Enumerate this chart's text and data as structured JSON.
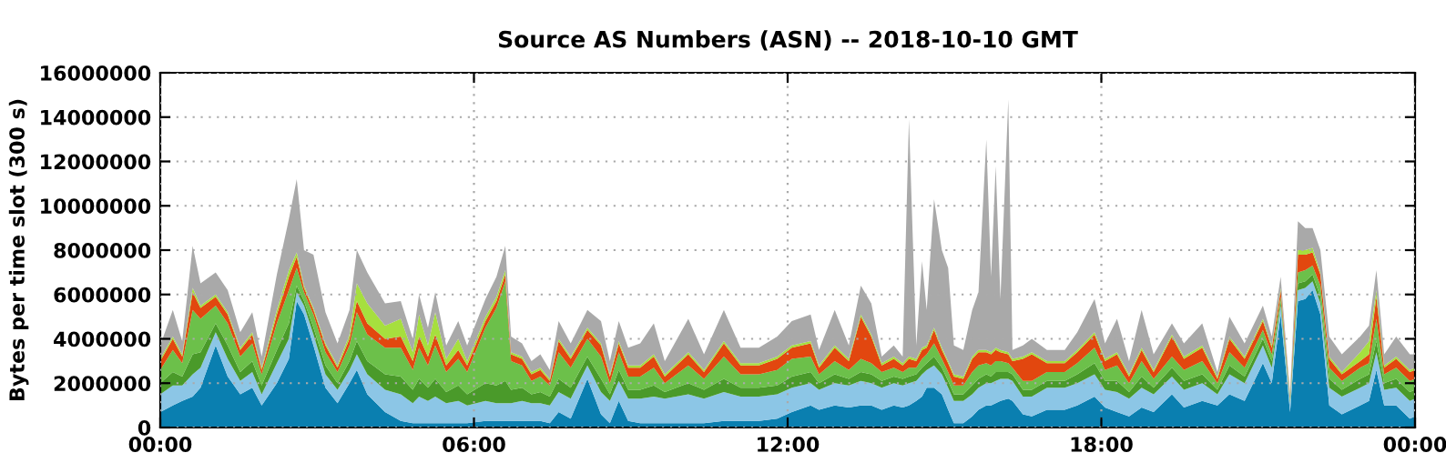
{
  "chart_data": {
    "type": "area",
    "stacked": true,
    "title": "Source AS Numbers (ASN) -- 2018-10-10 GMT",
    "ylabel": "Bytes per time slot (300 s)",
    "xlim": [
      0,
      24
    ],
    "xticks": [
      {
        "value": 0,
        "label": "00:00"
      },
      {
        "value": 6,
        "label": "06:00"
      },
      {
        "value": 12,
        "label": "12:00"
      },
      {
        "value": 18,
        "label": "18:00"
      },
      {
        "value": 24,
        "label": "00:00"
      }
    ],
    "ylim": [
      0,
      16000000
    ],
    "yticks": [
      0,
      2000000,
      4000000,
      6000000,
      8000000,
      10000000,
      12000000,
      14000000,
      16000000
    ],
    "grid": true,
    "legend": false,
    "x": [
      0,
      0.24,
      0.42,
      0.62,
      0.77,
      1.06,
      1.29,
      1.53,
      1.76,
      1.94,
      2.23,
      2.46,
      2.61,
      2.75,
      2.93,
      3.16,
      3.39,
      3.62,
      3.76,
      3.96,
      4.3,
      4.6,
      4.83,
      4.95,
      5.12,
      5.26,
      5.47,
      5.7,
      5.87,
      6.22,
      6.43,
      6.6,
      6.71,
      6.92,
      7.1,
      7.27,
      7.45,
      7.62,
      7.85,
      8.17,
      8.43,
      8.6,
      8.77,
      8.95,
      9.18,
      9.44,
      9.65,
      10.1,
      10.4,
      10.78,
      11.1,
      11.45,
      11.8,
      12.08,
      12.44,
      12.6,
      12.9,
      13.17,
      13.4,
      13.6,
      13.8,
      14.03,
      14.2,
      14.32,
      14.46,
      14.57,
      14.66,
      14.8,
      14.95,
      15.07,
      15.18,
      15.36,
      15.53,
      15.65,
      15.8,
      15.89,
      15.98,
      16.07,
      16.22,
      16.3,
      16.5,
      16.67,
      16.96,
      17.3,
      17.54,
      17.87,
      18.07,
      18.3,
      18.53,
      18.77,
      19.0,
      19.35,
      19.58,
      19.93,
      20.22,
      20.45,
      20.74,
      21.09,
      21.26,
      21.43,
      21.61,
      21.76,
      21.9,
      22.04,
      22.19,
      22.36,
      22.6,
      22.95,
      23.12,
      23.26,
      23.41,
      23.64,
      23.9,
      24
    ],
    "series": [
      {
        "color": "#0a7fb0",
        "values": [
          700000,
          1000000,
          1200000,
          1400000,
          1800000,
          3700000,
          2300000,
          1500000,
          1800000,
          1000000,
          2000000,
          3100000,
          5700000,
          5100000,
          3700000,
          1800000,
          1100000,
          2000000,
          2600000,
          1500000,
          700000,
          300000,
          200000,
          200000,
          200000,
          200000,
          200000,
          200000,
          200000,
          300000,
          300000,
          300000,
          300000,
          300000,
          300000,
          300000,
          200000,
          700000,
          400000,
          2200000,
          600000,
          200000,
          1200000,
          300000,
          200000,
          200000,
          200000,
          200000,
          200000,
          300000,
          300000,
          300000,
          400000,
          700000,
          1000000,
          800000,
          1000000,
          900000,
          1000000,
          1000000,
          800000,
          1000000,
          900000,
          1000000,
          1200000,
          1400000,
          1800000,
          1800000,
          1500000,
          800000,
          200000,
          200000,
          500000,
          800000,
          1000000,
          1000000,
          1100000,
          1200000,
          1300000,
          1200000,
          600000,
          500000,
          800000,
          800000,
          1000000,
          1400000,
          900000,
          700000,
          500000,
          900000,
          700000,
          1500000,
          900000,
          1200000,
          1000000,
          1500000,
          1200000,
          2900000,
          2000000,
          5100000,
          700000,
          5700000,
          5800000,
          6200000,
          5100000,
          1000000,
          600000,
          1000000,
          1200000,
          2600000,
          1000000,
          1000000,
          400000,
          500000
        ]
      },
      {
        "color": "#8cc6e6",
        "values": [
          800000,
          900000,
          700000,
          1000000,
          900000,
          600000,
          800000,
          600000,
          700000,
          500000,
          900000,
          900000,
          400000,
          400000,
          500000,
          600000,
          600000,
          600000,
          700000,
          900000,
          1000000,
          1200000,
          900000,
          1200000,
          1000000,
          1200000,
          900000,
          1000000,
          800000,
          900000,
          800000,
          800000,
          800000,
          900000,
          800000,
          800000,
          800000,
          900000,
          900000,
          600000,
          1000000,
          1000000,
          900000,
          1000000,
          1100000,
          1200000,
          1100000,
          1300000,
          1100000,
          1300000,
          1100000,
          1100000,
          1100000,
          1100000,
          1000000,
          900000,
          1000000,
          1000000,
          1100000,
          1000000,
          1000000,
          1000000,
          1000000,
          1000000,
          900000,
          1000000,
          800000,
          1000000,
          900000,
          1000000,
          1000000,
          1000000,
          1000000,
          1000000,
          1000000,
          1000000,
          1000000,
          1000000,
          900000,
          900000,
          800000,
          900000,
          1000000,
          1000000,
          1000000,
          1000000,
          800000,
          900000,
          800000,
          900000,
          800000,
          800000,
          800000,
          800000,
          500000,
          900000,
          800000,
          800000,
          700000,
          400000,
          400000,
          500000,
          500000,
          400000,
          500000,
          800000,
          800000,
          800000,
          800000,
          800000,
          700000,
          800000,
          800000,
          800000
        ]
      },
      {
        "color": "#4a9a2a",
        "values": [
          500000,
          600000,
          400000,
          900000,
          700000,
          400000,
          600000,
          400000,
          500000,
          400000,
          600000,
          700000,
          300000,
          200000,
          300000,
          400000,
          300000,
          400000,
          600000,
          600000,
          700000,
          800000,
          600000,
          800000,
          600000,
          800000,
          500000,
          700000,
          500000,
          800000,
          800000,
          1000000,
          600000,
          600000,
          400000,
          500000,
          400000,
          600000,
          500000,
          400000,
          600000,
          300000,
          500000,
          400000,
          400000,
          500000,
          300000,
          500000,
          400000,
          600000,
          400000,
          400000,
          400000,
          500000,
          500000,
          300000,
          400000,
          300000,
          400000,
          400000,
          300000,
          300000,
          300000,
          300000,
          300000,
          300000,
          300000,
          400000,
          300000,
          300000,
          300000,
          300000,
          400000,
          400000,
          400000,
          300000,
          400000,
          300000,
          300000,
          300000,
          300000,
          300000,
          300000,
          300000,
          400000,
          500000,
          400000,
          500000,
          300000,
          500000,
          300000,
          400000,
          400000,
          400000,
          200000,
          400000,
          300000,
          300000,
          300000,
          200000,
          100000,
          300000,
          300000,
          300000,
          300000,
          400000,
          300000,
          400000,
          400000,
          500000,
          300000,
          400000,
          400000,
          400000
        ]
      },
      {
        "color": "#6cc04a",
        "values": [
          600000,
          1000000,
          600000,
          2000000,
          1500000,
          800000,
          1000000,
          700000,
          800000,
          500000,
          1200000,
          1500000,
          800000,
          400000,
          600000,
          600000,
          500000,
          700000,
          1300000,
          1200000,
          1200000,
          1300000,
          900000,
          1400000,
          1000000,
          1500000,
          900000,
          1200000,
          1000000,
          2500000,
          3500000,
          4500000,
          1300000,
          1000000,
          600000,
          700000,
          500000,
          1200000,
          900000,
          800000,
          1000000,
          500000,
          800000,
          600000,
          600000,
          800000,
          400000,
          800000,
          500000,
          1000000,
          600000,
          600000,
          700000,
          800000,
          700000,
          400000,
          600000,
          400000,
          600000,
          500000,
          400000,
          400000,
          300000,
          400000,
          300000,
          400000,
          400000,
          600000,
          400000,
          400000,
          400000,
          400000,
          600000,
          600000,
          500000,
          500000,
          500000,
          500000,
          400000,
          300000,
          400000,
          400000,
          400000,
          400000,
          500000,
          700000,
          500000,
          700000,
          400000,
          700000,
          400000,
          500000,
          500000,
          600000,
          300000,
          600000,
          400000,
          400000,
          300000,
          200000,
          100000,
          500000,
          500000,
          400000,
          500000,
          500000,
          400000,
          500000,
          500000,
          1000000,
          400000,
          500000,
          500000,
          500000
        ]
      },
      {
        "color": "#e2470f",
        "values": [
          400000,
          500000,
          300000,
          800000,
          500000,
          400000,
          400000,
          300000,
          400000,
          200000,
          400000,
          600000,
          500000,
          200000,
          200000,
          300000,
          200000,
          300000,
          500000,
          500000,
          400000,
          500000,
          400000,
          500000,
          400000,
          500000,
          300000,
          400000,
          300000,
          300000,
          300000,
          300000,
          300000,
          300000,
          300000,
          300000,
          200000,
          500000,
          400000,
          400000,
          500000,
          300000,
          400000,
          400000,
          400000,
          500000,
          300000,
          500000,
          300000,
          600000,
          400000,
          400000,
          500000,
          500000,
          600000,
          300000,
          600000,
          400000,
          1900000,
          1200000,
          300000,
          400000,
          300000,
          400000,
          300000,
          400000,
          300000,
          600000,
          400000,
          400000,
          400000,
          300000,
          600000,
          600000,
          500000,
          500000,
          500000,
          400000,
          400000,
          300000,
          1000000,
          1200000,
          400000,
          400000,
          500000,
          600000,
          400000,
          500000,
          300000,
          500000,
          300000,
          900000,
          500000,
          600000,
          200000,
          600000,
          400000,
          400000,
          300000,
          300000,
          100000,
          800000,
          700000,
          600000,
          500000,
          400000,
          300000,
          300000,
          400000,
          1000000,
          300000,
          400000,
          400000,
          400000
        ]
      },
      {
        "color": "#a6df3e",
        "values": [
          100000,
          100000,
          100000,
          200000,
          100000,
          100000,
          100000,
          100000,
          100000,
          100000,
          200000,
          300000,
          200000,
          100000,
          100000,
          100000,
          100000,
          200000,
          800000,
          900000,
          600000,
          800000,
          400000,
          1000000,
          500000,
          1000000,
          300000,
          500000,
          200000,
          200000,
          200000,
          200000,
          100000,
          100000,
          100000,
          100000,
          100000,
          100000,
          100000,
          100000,
          100000,
          100000,
          100000,
          100000,
          100000,
          100000,
          100000,
          100000,
          100000,
          100000,
          100000,
          100000,
          100000,
          100000,
          100000,
          100000,
          100000,
          100000,
          100000,
          100000,
          100000,
          100000,
          100000,
          100000,
          100000,
          100000,
          100000,
          100000,
          100000,
          100000,
          100000,
          100000,
          100000,
          100000,
          100000,
          100000,
          100000,
          100000,
          100000,
          100000,
          100000,
          100000,
          100000,
          100000,
          100000,
          100000,
          100000,
          100000,
          100000,
          100000,
          100000,
          100000,
          100000,
          100000,
          100000,
          100000,
          100000,
          100000,
          100000,
          100000,
          0,
          200000,
          200000,
          200000,
          100000,
          100000,
          100000,
          400000,
          600000,
          300000,
          100000,
          100000,
          100000,
          100000
        ]
      },
      {
        "color": "#a9a9a9",
        "values": [
          600000,
          1200000,
          600000,
          1900000,
          1000000,
          1000000,
          1000000,
          700000,
          900000,
          500000,
          1600000,
          2300000,
          3300000,
          1600000,
          2400000,
          1400000,
          1000000,
          1100000,
          1500000,
          1400000,
          1000000,
          800000,
          600000,
          900000,
          800000,
          900000,
          600000,
          800000,
          700000,
          800000,
          900000,
          1100000,
          700000,
          600000,
          500000,
          600000,
          400000,
          800000,
          600000,
          800000,
          1000000,
          600000,
          900000,
          800000,
          1000000,
          1400000,
          600000,
          1500000,
          700000,
          1400000,
          700000,
          700000,
          900000,
          1100000,
          1200000,
          700000,
          1600000,
          600000,
          1300000,
          1400000,
          300000,
          500000,
          300000,
          10700000,
          600000,
          3900000,
          1600000,
          5800000,
          4400000,
          4200000,
          1300000,
          1200000,
          2100000,
          2600000,
          9500000,
          3400000,
          8200000,
          2300000,
          11400000,
          400000,
          500000,
          600000,
          500000,
          500000,
          800000,
          1500000,
          700000,
          1500000,
          600000,
          1700000,
          700000,
          500000,
          600000,
          1000000,
          200000,
          900000,
          600000,
          600000,
          400000,
          500000,
          100000,
          1300000,
          1000000,
          900000,
          1000000,
          900000,
          800000,
          700000,
          700000,
          900000,
          500000,
          900000,
          700000,
          600000
        ]
      }
    ]
  }
}
